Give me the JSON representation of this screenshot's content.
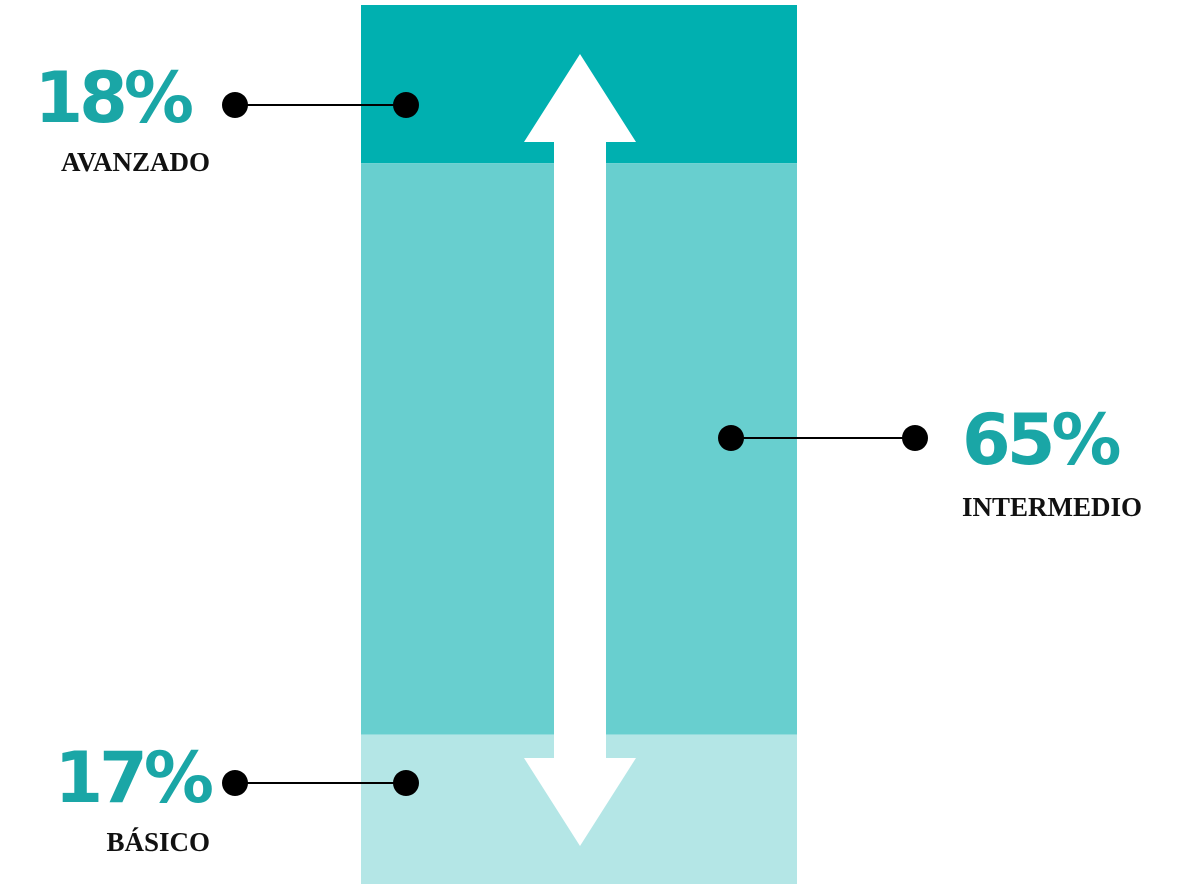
{
  "chart_data": {
    "type": "bar",
    "stacked": true,
    "orientation": "vertical",
    "categories": [
      "AVANZADO",
      "INTERMEDIO",
      "BÁSICO"
    ],
    "series": [
      {
        "label": "AVANZADO",
        "value": 18,
        "value_label": "18%",
        "color": "#00b0b0",
        "side": "left"
      },
      {
        "label": "INTERMEDIO",
        "value": 65,
        "value_label": "65%",
        "color": "#68cfcf",
        "side": "right"
      },
      {
        "label": "BÁSICO",
        "value": 17,
        "value_label": "17%",
        "color": "#b4e6e6",
        "side": "left"
      }
    ],
    "arrow": {
      "direction": "both",
      "color": "#ffffff"
    },
    "value_color": "#1aa6a6",
    "connector_color": "#000000"
  }
}
